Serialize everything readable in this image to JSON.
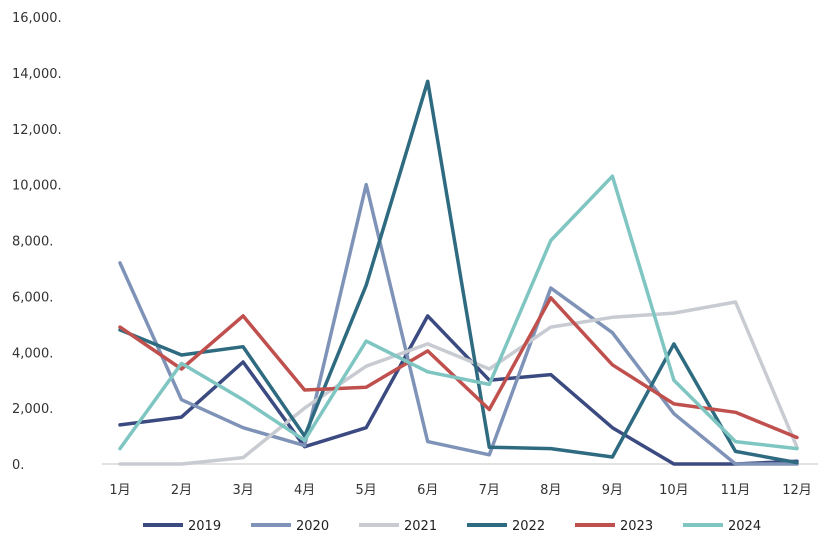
{
  "chart_data": {
    "type": "line",
    "title": "",
    "xlabel": "",
    "ylabel": "",
    "categories": [
      "1月",
      "2月",
      "3月",
      "4月",
      "5月",
      "6月",
      "7月",
      "8月",
      "9月",
      "10月",
      "11月",
      "12月"
    ],
    "ylim": [
      0,
      16000
    ],
    "yticks": [
      0,
      2000,
      4000,
      6000,
      8000,
      10000,
      12000,
      14000,
      16000
    ],
    "ytick_labels": [
      "0.",
      "2,000.",
      "4,000.",
      "6,000.",
      "8,000.",
      "10,000.",
      "12,000.",
      "14,000.",
      "16,000."
    ],
    "grid": false,
    "legend_position": "bottom",
    "series": [
      {
        "name": "2019",
        "color": "#3b4a80",
        "values": [
          1400,
          1680,
          3650,
          620,
          1300,
          5300,
          3000,
          3200,
          1300,
          0,
          0,
          100
        ]
      },
      {
        "name": "2020",
        "color": "#7e93b7",
        "values": [
          7200,
          2300,
          1300,
          660,
          10000,
          800,
          330,
          6300,
          4700,
          1800,
          0,
          0
        ]
      },
      {
        "name": "2021",
        "color": "#c8cbd1",
        "values": [
          0,
          0,
          230,
          2000,
          3500,
          4300,
          3400,
          4900,
          5250,
          5400,
          5800,
          600
        ]
      },
      {
        "name": "2022",
        "color": "#2e6b80",
        "values": [
          4800,
          3900,
          4200,
          1000,
          6400,
          13700,
          600,
          550,
          250,
          4300,
          450,
          50
        ]
      },
      {
        "name": "2023",
        "color": "#c0504d",
        "values": [
          4900,
          3400,
          5300,
          2650,
          2750,
          4050,
          1950,
          5950,
          3550,
          2150,
          1850,
          950
        ]
      },
      {
        "name": "2024",
        "color": "#7fc6c2",
        "values": [
          550,
          3600,
          2300,
          850,
          4400,
          3300,
          2850,
          8000,
          10300,
          3000,
          800,
          550
        ]
      }
    ]
  }
}
